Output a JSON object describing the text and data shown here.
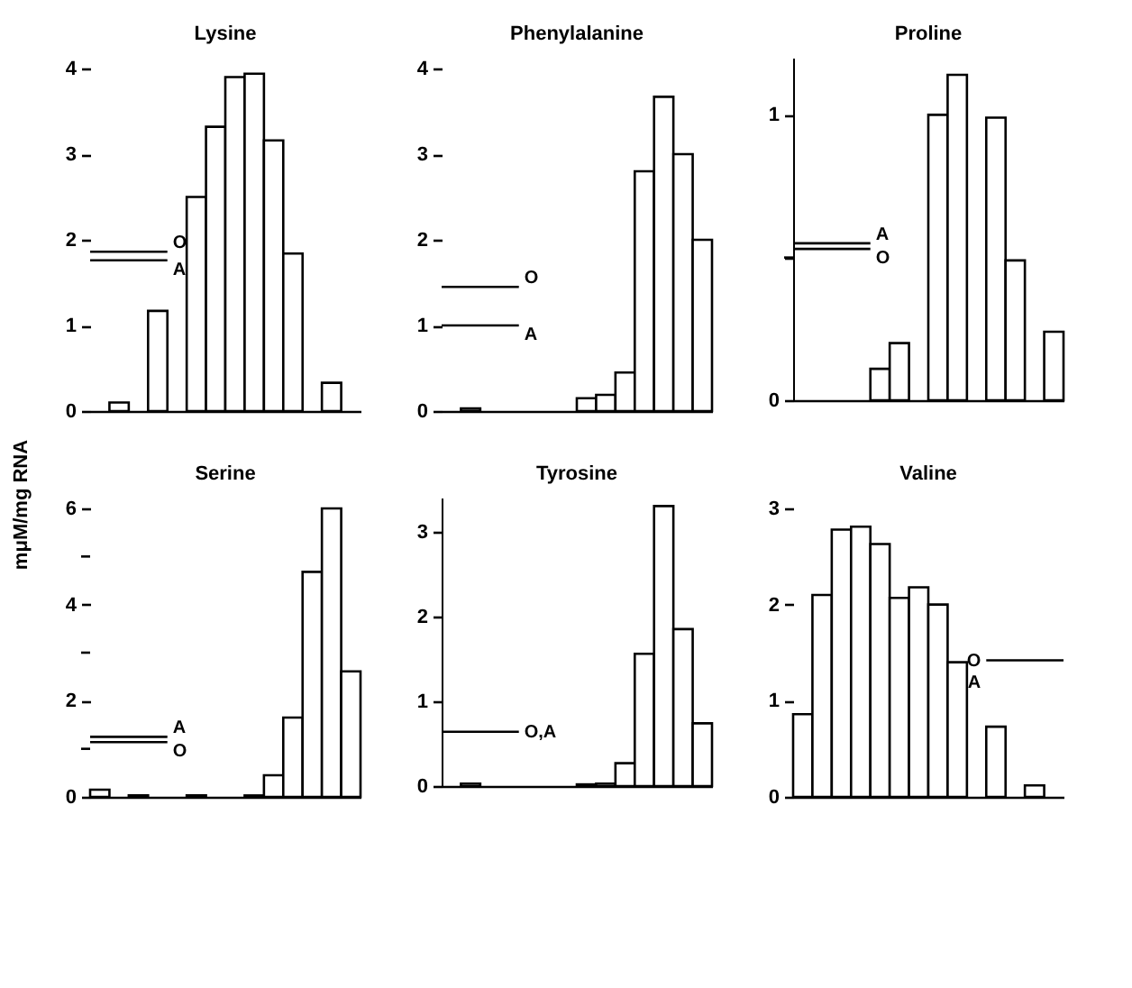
{
  "chart_data": [
    {
      "type": "bar",
      "title": "Lysine",
      "ylabel": "mμM/mg RNA",
      "categories": [
        null,
        null,
        null,
        null,
        null,
        null,
        null,
        null,
        null,
        null,
        null,
        null,
        null,
        null
      ],
      "values": [
        null,
        0.1,
        null,
        1.17,
        null,
        2.5,
        3.32,
        3.9,
        3.94,
        3.16,
        1.84,
        null,
        0.33,
        null
      ],
      "color": "#000000",
      "ylim": [
        0,
        4
      ],
      "yticks": [
        0,
        1,
        2,
        3,
        4
      ],
      "tick_labels": "y",
      "ref_lines": [
        {
          "axis": "y",
          "value": 1.86,
          "label": "O"
        },
        {
          "axis": "y",
          "value": 1.76,
          "label": "A"
        }
      ]
    },
    {
      "type": "bar",
      "title": "Phenylalanine",
      "categories": [
        null,
        null,
        null,
        null,
        null,
        null,
        null,
        null,
        null,
        null,
        null,
        null,
        null,
        null
      ],
      "values": [
        null,
        0.03,
        null,
        null,
        null,
        null,
        null,
        0.15,
        0.19,
        0.45,
        2.8,
        3.67,
        3.0,
        2.0
      ],
      "color": "#000000",
      "ylim": [
        0,
        4
      ],
      "yticks": [
        0,
        1,
        2,
        3,
        4
      ],
      "tick_labels": "y",
      "ref_lines": [
        {
          "axis": "y",
          "value": 1.45,
          "label": "O"
        },
        {
          "axis": "y",
          "value": 1.0,
          "label": "A"
        }
      ]
    },
    {
      "type": "bar",
      "title": "Proline",
      "categories": [
        null,
        null,
        null,
        null,
        null,
        null,
        null,
        null,
        null,
        null,
        null,
        null,
        null,
        null
      ],
      "values": [
        null,
        null,
        null,
        null,
        0.11,
        0.2,
        null,
        1.0,
        1.14,
        null,
        0.99,
        0.49,
        null,
        0.24
      ],
      "color": "#000000",
      "ylim": [
        0,
        1.2
      ],
      "yticks": [
        0,
        {
          "value": 0.5,
          "label": null
        },
        1
      ],
      "tick_labels": "y",
      "ref_lines": [
        {
          "axis": "y",
          "value": 0.55,
          "label": "A"
        },
        {
          "axis": "y",
          "value": 0.53,
          "label": "O"
        }
      ]
    },
    {
      "type": "bar",
      "title": "Serine",
      "categories": [
        null,
        null,
        null,
        null,
        null,
        null,
        null,
        null,
        null,
        null,
        null,
        null,
        null,
        null
      ],
      "values": [
        0.15,
        null,
        0.03,
        null,
        null,
        0.03,
        null,
        null,
        0.03,
        0.45,
        1.65,
        4.68,
        6.0,
        2.61
      ],
      "color": "#000000",
      "ylim": [
        0,
        6
      ],
      "yticks": [
        0,
        {
          "value": 1,
          "label": null
        },
        2,
        {
          "value": 3,
          "label": null
        },
        4,
        {
          "value": 5,
          "label": null
        },
        6
      ],
      "tick_labels": "y",
      "ref_lines": [
        {
          "axis": "y",
          "value": 1.25,
          "label": "A"
        },
        {
          "axis": "y",
          "value": 1.14,
          "label": "O"
        }
      ]
    },
    {
      "type": "bar",
      "title": "Tyrosine",
      "categories": [
        null,
        null,
        null,
        null,
        null,
        null,
        null,
        null,
        null,
        null,
        null,
        null,
        null,
        null
      ],
      "values": [
        null,
        0.03,
        null,
        null,
        null,
        null,
        null,
        0.02,
        0.03,
        0.27,
        1.56,
        3.3,
        1.85,
        0.74
      ],
      "color": "#000000",
      "ylim": [
        0,
        3.4
      ],
      "yticks": [
        0,
        1,
        2,
        3
      ],
      "tick_labels": "y",
      "ref_lines": [
        {
          "axis": "y",
          "value": 0.64,
          "label": "O,A"
        }
      ]
    },
    {
      "type": "bar",
      "title": "Valine",
      "categories": [
        null,
        null,
        null,
        null,
        null,
        null,
        null,
        null,
        null,
        null,
        null,
        null,
        null,
        null
      ],
      "values": [
        0.86,
        2.1,
        2.78,
        2.81,
        2.63,
        2.07,
        2.18,
        2.0,
        1.4,
        null,
        0.73,
        null,
        0.12,
        null
      ],
      "color": "#000000",
      "ylim": [
        0,
        3
      ],
      "yticks": [
        0,
        1,
        2,
        3
      ],
      "tick_labels": "y",
      "ref_lines": [
        {
          "axis": "y",
          "value": 1.42,
          "label": "O\nA"
        }
      ]
    }
  ]
}
